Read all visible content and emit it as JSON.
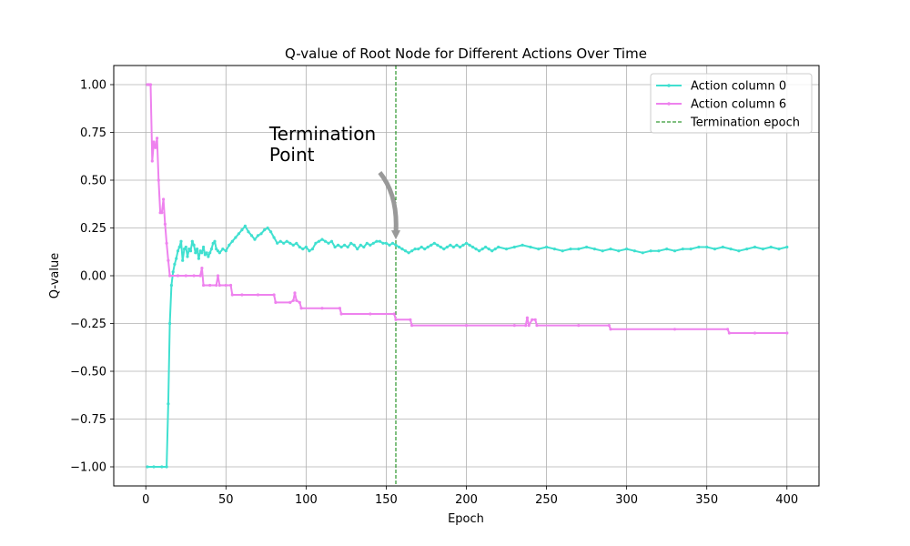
{
  "chart_data": {
    "type": "line",
    "title": "Q-value of Root Node for Different Actions Over Time",
    "xlabel": "Epoch",
    "ylabel": "Q-value",
    "xlim": [
      -20,
      420
    ],
    "ylim": [
      -1.1,
      1.1
    ],
    "xticks": [
      0,
      50,
      100,
      150,
      200,
      250,
      300,
      350,
      400
    ],
    "yticks": [
      1.0,
      0.75,
      0.5,
      0.25,
      0.0,
      -0.25,
      -0.5,
      -0.75,
      -1.0
    ],
    "xtick_labels": [
      "0",
      "50",
      "100",
      "150",
      "200",
      "250",
      "300",
      "350",
      "400"
    ],
    "ytick_labels": [
      "1.00",
      "0.75",
      "0.50",
      "0.25",
      "0.00",
      "−0.25",
      "−0.50",
      "−0.75",
      "−1.00"
    ],
    "grid": true,
    "legend_position": "top-right",
    "series": [
      {
        "name": "Action column 0",
        "color": "#40e0d0",
        "points": [
          [
            1,
            -1.0
          ],
          [
            5,
            -1.0
          ],
          [
            10,
            -1.0
          ],
          [
            13,
            -1.0
          ],
          [
            14,
            -0.67
          ],
          [
            15,
            -0.25
          ],
          [
            16,
            -0.05
          ],
          [
            17,
            0.02
          ],
          [
            18,
            0.06
          ],
          [
            19,
            0.09
          ],
          [
            20,
            0.13
          ],
          [
            21,
            0.15
          ],
          [
            22,
            0.18
          ],
          [
            23,
            0.08
          ],
          [
            24,
            0.14
          ],
          [
            25,
            0.15
          ],
          [
            26,
            0.1
          ],
          [
            27,
            0.14
          ],
          [
            28,
            0.13
          ],
          [
            29,
            0.18
          ],
          [
            30,
            0.16
          ],
          [
            31,
            0.12
          ],
          [
            32,
            0.14
          ],
          [
            33,
            0.09
          ],
          [
            34,
            0.13
          ],
          [
            35,
            0.12
          ],
          [
            36,
            0.15
          ],
          [
            37,
            0.11
          ],
          [
            38,
            0.12
          ],
          [
            39,
            0.1
          ],
          [
            40,
            0.12
          ],
          [
            41,
            0.14
          ],
          [
            42,
            0.17
          ],
          [
            43,
            0.18
          ],
          [
            44,
            0.14
          ],
          [
            45,
            0.13
          ],
          [
            46,
            0.12
          ],
          [
            48,
            0.14
          ],
          [
            50,
            0.13
          ],
          [
            52,
            0.16
          ],
          [
            54,
            0.18
          ],
          [
            56,
            0.2
          ],
          [
            58,
            0.22
          ],
          [
            60,
            0.24
          ],
          [
            62,
            0.26
          ],
          [
            64,
            0.23
          ],
          [
            66,
            0.21
          ],
          [
            68,
            0.19
          ],
          [
            70,
            0.21
          ],
          [
            72,
            0.22
          ],
          [
            74,
            0.24
          ],
          [
            76,
            0.25
          ],
          [
            78,
            0.23
          ],
          [
            80,
            0.2
          ],
          [
            82,
            0.17
          ],
          [
            84,
            0.18
          ],
          [
            86,
            0.17
          ],
          [
            88,
            0.18
          ],
          [
            90,
            0.17
          ],
          [
            92,
            0.16
          ],
          [
            94,
            0.17
          ],
          [
            96,
            0.15
          ],
          [
            98,
            0.14
          ],
          [
            100,
            0.15
          ],
          [
            102,
            0.13
          ],
          [
            104,
            0.14
          ],
          [
            106,
            0.17
          ],
          [
            108,
            0.18
          ],
          [
            110,
            0.19
          ],
          [
            112,
            0.18
          ],
          [
            114,
            0.17
          ],
          [
            116,
            0.18
          ],
          [
            118,
            0.15
          ],
          [
            120,
            0.16
          ],
          [
            122,
            0.15
          ],
          [
            124,
            0.16
          ],
          [
            126,
            0.15
          ],
          [
            128,
            0.17
          ],
          [
            130,
            0.16
          ],
          [
            132,
            0.14
          ],
          [
            134,
            0.16
          ],
          [
            136,
            0.15
          ],
          [
            138,
            0.17
          ],
          [
            140,
            0.16
          ],
          [
            142,
            0.17
          ],
          [
            144,
            0.18
          ],
          [
            146,
            0.18
          ],
          [
            148,
            0.17
          ],
          [
            150,
            0.17
          ],
          [
            152,
            0.16
          ],
          [
            154,
            0.17
          ],
          [
            156,
            0.16
          ],
          [
            158,
            0.15
          ],
          [
            160,
            0.14
          ],
          [
            162,
            0.13
          ],
          [
            164,
            0.12
          ],
          [
            166,
            0.13
          ],
          [
            168,
            0.14
          ],
          [
            170,
            0.14
          ],
          [
            172,
            0.15
          ],
          [
            174,
            0.14
          ],
          [
            176,
            0.15
          ],
          [
            178,
            0.16
          ],
          [
            180,
            0.17
          ],
          [
            182,
            0.16
          ],
          [
            184,
            0.15
          ],
          [
            186,
            0.14
          ],
          [
            188,
            0.15
          ],
          [
            190,
            0.16
          ],
          [
            192,
            0.15
          ],
          [
            194,
            0.16
          ],
          [
            196,
            0.15
          ],
          [
            198,
            0.16
          ],
          [
            200,
            0.17
          ],
          [
            202,
            0.16
          ],
          [
            204,
            0.15
          ],
          [
            206,
            0.14
          ],
          [
            208,
            0.13
          ],
          [
            210,
            0.14
          ],
          [
            212,
            0.15
          ],
          [
            214,
            0.14
          ],
          [
            216,
            0.13
          ],
          [
            218,
            0.14
          ],
          [
            220,
            0.15
          ],
          [
            225,
            0.14
          ],
          [
            230,
            0.15
          ],
          [
            235,
            0.16
          ],
          [
            240,
            0.15
          ],
          [
            245,
            0.14
          ],
          [
            250,
            0.15
          ],
          [
            255,
            0.14
          ],
          [
            260,
            0.13
          ],
          [
            265,
            0.14
          ],
          [
            270,
            0.14
          ],
          [
            275,
            0.15
          ],
          [
            280,
            0.14
          ],
          [
            285,
            0.13
          ],
          [
            290,
            0.14
          ],
          [
            295,
            0.13
          ],
          [
            300,
            0.14
          ],
          [
            305,
            0.13
          ],
          [
            310,
            0.12
          ],
          [
            315,
            0.13
          ],
          [
            320,
            0.13
          ],
          [
            325,
            0.14
          ],
          [
            330,
            0.13
          ],
          [
            335,
            0.14
          ],
          [
            340,
            0.14
          ],
          [
            345,
            0.15
          ],
          [
            350,
            0.15
          ],
          [
            355,
            0.14
          ],
          [
            360,
            0.15
          ],
          [
            365,
            0.14
          ],
          [
            370,
            0.13
          ],
          [
            375,
            0.14
          ],
          [
            380,
            0.15
          ],
          [
            385,
            0.14
          ],
          [
            390,
            0.15
          ],
          [
            395,
            0.14
          ],
          [
            400,
            0.15
          ]
        ]
      },
      {
        "name": "Action column 6",
        "color": "#ee82ee",
        "points": [
          [
            1,
            1.0
          ],
          [
            2,
            1.0
          ],
          [
            3,
            1.0
          ],
          [
            4,
            0.6
          ],
          [
            5,
            0.7
          ],
          [
            6,
            0.67
          ],
          [
            7,
            0.72
          ],
          [
            8,
            0.5
          ],
          [
            9,
            0.33
          ],
          [
            10,
            0.33
          ],
          [
            11,
            0.4
          ],
          [
            12,
            0.27
          ],
          [
            13,
            0.17
          ],
          [
            14,
            0.08
          ],
          [
            15,
            0.0
          ],
          [
            20,
            0.0
          ],
          [
            25,
            0.0
          ],
          [
            30,
            0.0
          ],
          [
            34,
            0.0
          ],
          [
            35,
            0.04
          ],
          [
            36,
            -0.05
          ],
          [
            40,
            -0.05
          ],
          [
            44,
            -0.05
          ],
          [
            45,
            0.0
          ],
          [
            46,
            -0.05
          ],
          [
            50,
            -0.05
          ],
          [
            53,
            -0.05
          ],
          [
            54,
            -0.1
          ],
          [
            60,
            -0.1
          ],
          [
            70,
            -0.1
          ],
          [
            80,
            -0.1
          ],
          [
            81,
            -0.14
          ],
          [
            90,
            -0.14
          ],
          [
            92,
            -0.13
          ],
          [
            93,
            -0.09
          ],
          [
            94,
            -0.13
          ],
          [
            96,
            -0.14
          ],
          [
            97,
            -0.17
          ],
          [
            110,
            -0.17
          ],
          [
            121,
            -0.17
          ],
          [
            122,
            -0.2
          ],
          [
            140,
            -0.2
          ],
          [
            155,
            -0.2
          ],
          [
            156,
            -0.23
          ],
          [
            165,
            -0.23
          ],
          [
            166,
            -0.26
          ],
          [
            200,
            -0.26
          ],
          [
            230,
            -0.26
          ],
          [
            237,
            -0.26
          ],
          [
            238,
            -0.22
          ],
          [
            239,
            -0.26
          ],
          [
            241,
            -0.23
          ],
          [
            243,
            -0.23
          ],
          [
            244,
            -0.26
          ],
          [
            270,
            -0.26
          ],
          [
            289,
            -0.26
          ],
          [
            290,
            -0.28
          ],
          [
            330,
            -0.28
          ],
          [
            363,
            -0.28
          ],
          [
            364,
            -0.3
          ],
          [
            380,
            -0.3
          ],
          [
            400,
            -0.3
          ]
        ]
      }
    ],
    "termination_epoch": 156,
    "termination_label": "Termination epoch",
    "termination_color": "#008000",
    "annotation": {
      "lines": [
        "Termination",
        "Point"
      ],
      "text_at": [
        77,
        0.6
      ],
      "arrow_from": [
        146,
        0.54
      ],
      "arrow_to": [
        156,
        0.19
      ],
      "arrow_color": "#999999"
    }
  }
}
